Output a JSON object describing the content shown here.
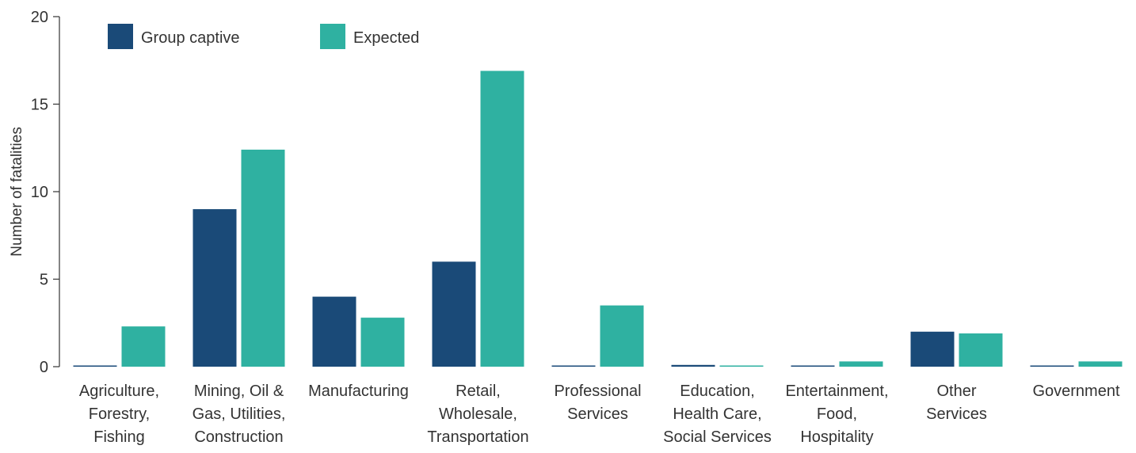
{
  "chart_data": {
    "type": "bar",
    "title": "",
    "xlabel": "",
    "ylabel": "Number of fatalities",
    "ylim": [
      0,
      20
    ],
    "yticks": [
      0,
      5,
      10,
      15,
      20
    ],
    "grid": false,
    "legend_position": "top-left",
    "categories": [
      [
        "Agriculture,",
        "Forestry,",
        "Fishing"
      ],
      [
        "Mining, Oil &",
        "Gas, Utilities,",
        "Construction"
      ],
      [
        "Manufacturing"
      ],
      [
        "Retail,",
        "Wholesale,",
        "Transportation"
      ],
      [
        "Professional",
        "Services"
      ],
      [
        "Education,",
        "Health Care,",
        "Social Services"
      ],
      [
        "Entertainment,",
        "Food,",
        "Hospitality"
      ],
      [
        "Other",
        "Services"
      ],
      [
        "Government"
      ]
    ],
    "series": [
      {
        "name": "Group captive",
        "color": "#1a4a78",
        "values": [
          0,
          9,
          4,
          6,
          0,
          0.1,
          0,
          2,
          0
        ]
      },
      {
        "name": "Expected",
        "color": "#2fb1a1",
        "values": [
          2.3,
          12.4,
          2.8,
          16.9,
          3.5,
          0,
          0.3,
          1.9,
          0.3
        ]
      }
    ]
  }
}
